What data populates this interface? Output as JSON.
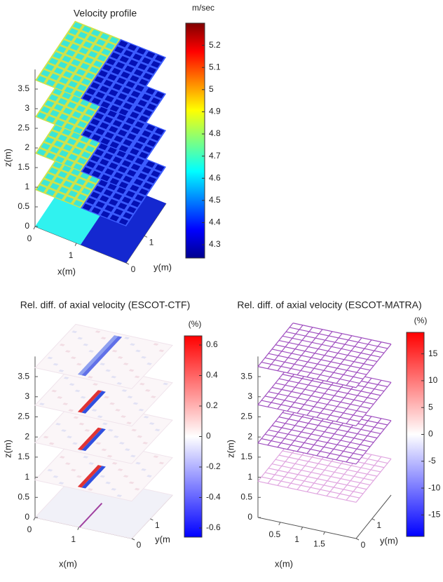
{
  "chart_data": [
    {
      "type": "surface3d",
      "title": "Velocity profile",
      "colorbar_label": "m/sec",
      "xlabel": "x(m)",
      "ylabel": "y(m)",
      "zlabel": "z(m)",
      "xlim": [
        0,
        2.2
      ],
      "ylim": [
        0,
        2.2
      ],
      "zlim": [
        0,
        4
      ],
      "xticks": [
        0,
        1
      ],
      "yticks": [
        0,
        1
      ],
      "zticks": [
        0,
        0.5,
        1,
        1.5,
        2,
        2.5,
        3,
        3.5
      ],
      "clim": [
        4.24,
        5.3
      ],
      "cticks": [
        4.3,
        4.4,
        4.5,
        4.6,
        4.7,
        4.8,
        4.9,
        5,
        5.1,
        5.2
      ],
      "colormap": "jet"
    },
    {
      "type": "surface3d",
      "title": "Rel. diff. of axial velocity (ESCOT-CTF)",
      "colorbar_label": "(%)",
      "xlabel": "x(m)",
      "ylabel": "y(m",
      "zlabel": "z(m)",
      "xlim": [
        0,
        2.2
      ],
      "ylim": [
        0,
        2.2
      ],
      "zlim": [
        0,
        4
      ],
      "xticks": [
        0,
        1
      ],
      "yticks": [
        0,
        1
      ],
      "zticks": [
        0,
        0.5,
        1,
        1.5,
        2,
        2.5,
        3,
        3.5
      ],
      "clim": [
        -0.66,
        0.66
      ],
      "cticks": [
        -0.6,
        -0.4,
        -0.2,
        0,
        0.2,
        0.4,
        0.6
      ],
      "colormap": "bwr"
    },
    {
      "type": "surface3d",
      "title": "Rel. diff. of axial velocity (ESCOT-MATRA)",
      "colorbar_label": "(%)",
      "xlabel": "x(m)",
      "ylabel": "y(m)",
      "zlabel": "z(m)",
      "xlim": [
        0,
        2.2
      ],
      "ylim": [
        0,
        2.2
      ],
      "zlim": [
        0,
        4
      ],
      "xticks": [
        0.5,
        1,
        1.5
      ],
      "yticks": [
        0,
        1
      ],
      "zticks": [
        0,
        0.5,
        1,
        1.5,
        2,
        2.5,
        3,
        3.5
      ],
      "clim": [
        -19,
        19
      ],
      "cticks": [
        -15,
        -10,
        -5,
        0,
        5,
        10,
        15
      ],
      "colormap": "bwr"
    }
  ]
}
